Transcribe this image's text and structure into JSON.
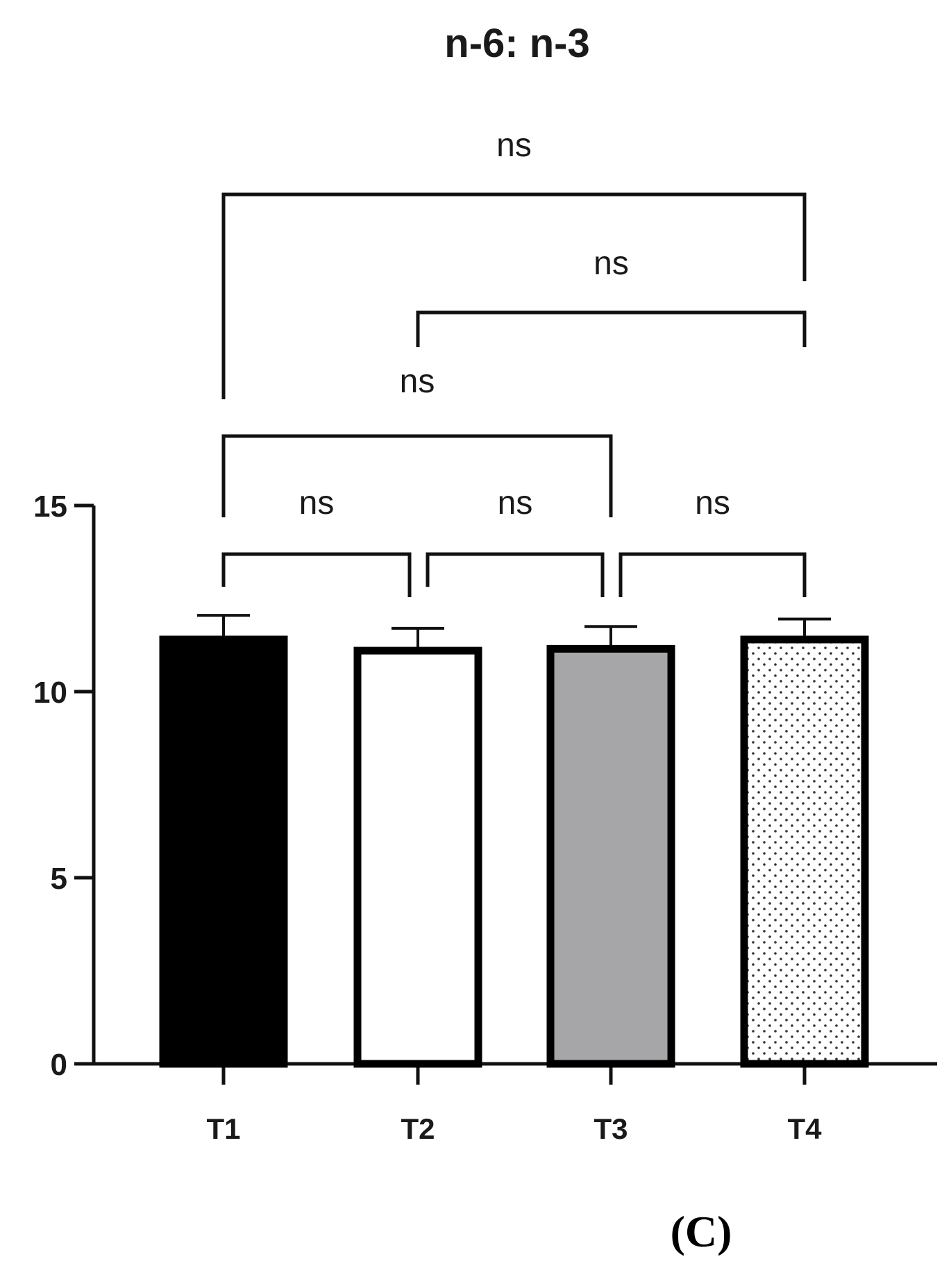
{
  "chart_data": {
    "type": "bar",
    "title": "n-6: n-3",
    "panel_label": "(C)",
    "xlabel": "",
    "ylabel": "",
    "categories": [
      "T1",
      "T2",
      "T3",
      "T4"
    ],
    "values": [
      11.4,
      11.1,
      11.15,
      11.4
    ],
    "errors": [
      0.65,
      0.6,
      0.6,
      0.55
    ],
    "ylim": [
      0,
      15
    ],
    "yticks": [
      0,
      5,
      10,
      15
    ],
    "bar_styles": [
      {
        "fill": "#000000",
        "pattern": "solid"
      },
      {
        "fill": "#ffffff",
        "pattern": "solid"
      },
      {
        "fill": "#a6a6a8",
        "pattern": "solid"
      },
      {
        "fill": "#ffffff",
        "pattern": "dots"
      }
    ],
    "comparisons": [
      {
        "from": "T1",
        "to": "T2",
        "label": "ns"
      },
      {
        "from": "T2",
        "to": "T3",
        "label": "ns"
      },
      {
        "from": "T3",
        "to": "T4",
        "label": "ns"
      },
      {
        "from": "T1",
        "to": "T3",
        "label": "ns"
      },
      {
        "from": "T2",
        "to": "T4",
        "label": "ns"
      },
      {
        "from": "T1",
        "to": "T4",
        "label": "ns"
      }
    ],
    "grid": false,
    "legend": "none"
  }
}
